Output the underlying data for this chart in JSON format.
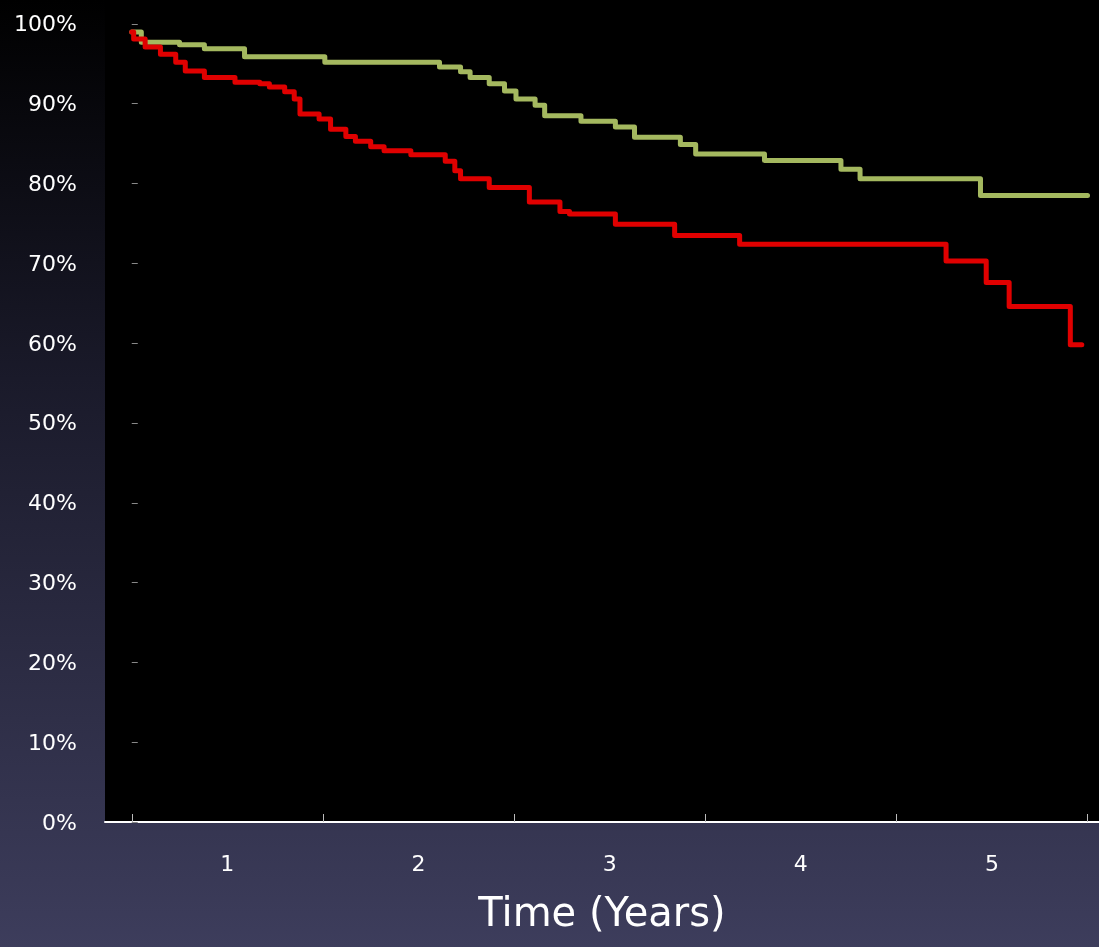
{
  "chart_data": {
    "type": "step",
    "xlabel": "Time (Years)",
    "xlim": [
      -0.14,
      5.06
    ],
    "ylim": [
      0,
      103
    ],
    "xticks": [
      {
        "value": 0,
        "label": null
      },
      {
        "value": 1,
        "label": null
      },
      {
        "value": 2,
        "label": null
      },
      {
        "value": 3,
        "label": null
      },
      {
        "value": 4,
        "label": null
      },
      {
        "value": 5,
        "label": null
      },
      {
        "value": 0.5,
        "label": "1"
      },
      {
        "value": 1.5,
        "label": "2"
      },
      {
        "value": 2.5,
        "label": "3"
      },
      {
        "value": 3.5,
        "label": "4"
      },
      {
        "value": 4.5,
        "label": "5"
      }
    ],
    "yticks": [
      {
        "value": 0,
        "label": "0%"
      },
      {
        "value": 10,
        "label": "10%"
      },
      {
        "value": 20,
        "label": "20%"
      },
      {
        "value": 30,
        "label": "30%"
      },
      {
        "value": 40,
        "label": "40%"
      },
      {
        "value": 50,
        "label": "50%"
      },
      {
        "value": 60,
        "label": "60%"
      },
      {
        "value": 70,
        "label": "70%"
      },
      {
        "value": 80,
        "label": "80%"
      },
      {
        "value": 90,
        "label": "90%"
      },
      {
        "value": 100,
        "label": "100%"
      }
    ],
    "grid": false,
    "marker": "none",
    "line_style": "solid",
    "series": [
      {
        "color": "#a4b85f",
        "x": [
          0,
          0.05,
          0.25,
          0.38,
          0.59,
          1.01,
          1.61,
          1.72,
          1.77,
          1.87,
          1.95,
          2.01,
          2.11,
          2.16,
          2.35,
          2.53,
          2.63,
          2.87,
          2.95,
          3.31,
          3.71,
          3.81,
          4.44,
          5.0
        ],
        "values": [
          99,
          97.7,
          97.4,
          96.9,
          95.9,
          95.2,
          94.6,
          94.0,
          93.3,
          92.5,
          91.6,
          90.6,
          89.8,
          88.5,
          87.8,
          87.1,
          85.8,
          84.9,
          83.7,
          82.9,
          81.8,
          80.6,
          78.5,
          78.5
        ]
      },
      {
        "color": "#e00000",
        "x": [
          0,
          0.01,
          0.07,
          0.15,
          0.23,
          0.28,
          0.38,
          0.54,
          0.67,
          0.72,
          0.8,
          0.85,
          0.88,
          0.98,
          1.04,
          1.12,
          1.17,
          1.25,
          1.32,
          1.46,
          1.64,
          1.69,
          1.72,
          1.87,
          2.08,
          2.24,
          2.29,
          2.53,
          2.84,
          3.18,
          4.26,
          4.47,
          4.59,
          4.91,
          4.97
        ],
        "values": [
          99,
          98.1,
          97.1,
          96.2,
          95.2,
          94.1,
          93.3,
          92.7,
          92.5,
          92.1,
          91.5,
          90.6,
          88.7,
          88.1,
          86.8,
          85.9,
          85.3,
          84.6,
          84.1,
          83.6,
          82.8,
          81.6,
          80.6,
          79.5,
          77.7,
          76.5,
          76.2,
          74.9,
          73.5,
          72.4,
          70.3,
          67.6,
          64.6,
          59.8,
          59.8
        ]
      }
    ]
  }
}
